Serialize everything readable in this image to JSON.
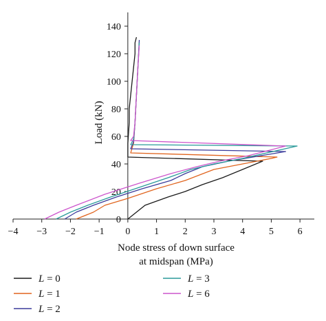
{
  "chart_data": {
    "type": "line",
    "xlabel_line1": "Node stress of down surface",
    "xlabel_line2": "at midspan (MPa)",
    "ylabel": "Load (kN)",
    "xlim": [
      -4,
      6.5
    ],
    "ylim": [
      0,
      150
    ],
    "x_ticks": [
      -4,
      -3,
      -2,
      -1,
      0,
      1,
      2,
      3,
      4,
      5,
      6
    ],
    "y_ticks": [
      0,
      20,
      40,
      60,
      80,
      100,
      120,
      140
    ],
    "grid": false,
    "legend_position": "bottom",
    "series": [
      {
        "name": "L = 0",
        "legend_var": "L",
        "legend_val": "= 0",
        "color": "#1a1a1a",
        "points": [
          [
            0.0,
            0
          ],
          [
            0.6,
            10
          ],
          [
            1.4,
            16
          ],
          [
            2.0,
            20
          ],
          [
            2.6,
            25
          ],
          [
            3.3,
            30
          ],
          [
            4.0,
            36
          ],
          [
            4.7,
            42
          ],
          [
            0.0,
            45
          ],
          [
            0.0,
            55
          ],
          [
            0.05,
            70
          ],
          [
            0.05,
            80
          ],
          [
            0.1,
            90
          ],
          [
            0.15,
            100
          ],
          [
            0.2,
            110
          ],
          [
            0.25,
            120
          ],
          [
            0.25,
            128
          ],
          [
            0.3,
            132
          ]
        ]
      },
      {
        "name": "L = 1",
        "legend_var": "L",
        "legend_val": "= 1",
        "color": "#e0641e",
        "points": [
          [
            -1.8,
            0
          ],
          [
            -1.2,
            5
          ],
          [
            -0.8,
            10
          ],
          [
            0.0,
            15
          ],
          [
            1.0,
            22
          ],
          [
            2.0,
            28
          ],
          [
            2.5,
            32
          ],
          [
            3.0,
            36
          ],
          [
            4.0,
            40
          ],
          [
            5.0,
            44
          ],
          [
            5.2,
            45
          ],
          [
            0.1,
            48
          ],
          [
            0.2,
            55
          ],
          [
            0.25,
            70
          ],
          [
            0.3,
            90
          ],
          [
            0.35,
            110
          ],
          [
            0.4,
            128
          ]
        ]
      },
      {
        "name": "L = 2",
        "legend_var": "L",
        "legend_val": "= 2",
        "color": "#3a3a9a",
        "points": [
          [
            -2.2,
            0
          ],
          [
            -1.8,
            5
          ],
          [
            -1.2,
            10
          ],
          [
            -0.4,
            16
          ],
          [
            0.5,
            22
          ],
          [
            1.5,
            28
          ],
          [
            2.0,
            33
          ],
          [
            2.6,
            38
          ],
          [
            3.5,
            42
          ],
          [
            5.5,
            49
          ],
          [
            0.1,
            51
          ],
          [
            0.2,
            56
          ],
          [
            0.25,
            70
          ],
          [
            0.3,
            90
          ],
          [
            0.35,
            110
          ],
          [
            0.4,
            130
          ]
        ]
      },
      {
        "name": "L = 3",
        "legend_var": "L",
        "legend_val": "= 3",
        "color": "#2a9a9a",
        "points": [
          [
            -2.5,
            0
          ],
          [
            -2.0,
            5
          ],
          [
            -1.4,
            10
          ],
          [
            -0.6,
            16
          ],
          [
            0.4,
            23
          ],
          [
            1.4,
            30
          ],
          [
            2.2,
            36
          ],
          [
            3.0,
            40
          ],
          [
            4.0,
            44
          ],
          [
            5.9,
            53
          ],
          [
            0.1,
            54
          ],
          [
            0.2,
            58
          ],
          [
            0.25,
            70
          ],
          [
            0.3,
            90
          ],
          [
            0.35,
            110
          ],
          [
            0.4,
            128
          ]
        ]
      },
      {
        "name": "L = 6",
        "legend_var": "L",
        "legend_val": "= 6",
        "color": "#cc55cc",
        "points": [
          [
            -2.9,
            0
          ],
          [
            -2.4,
            5
          ],
          [
            -1.8,
            10
          ],
          [
            -0.8,
            18
          ],
          [
            0.4,
            26
          ],
          [
            1.5,
            33
          ],
          [
            2.4,
            38
          ],
          [
            3.2,
            42
          ],
          [
            4.2,
            46
          ],
          [
            5.5,
            53
          ],
          [
            0.1,
            57
          ],
          [
            0.2,
            60
          ],
          [
            0.25,
            70
          ],
          [
            0.3,
            90
          ],
          [
            0.35,
            110
          ],
          [
            0.4,
            126
          ]
        ]
      }
    ]
  }
}
